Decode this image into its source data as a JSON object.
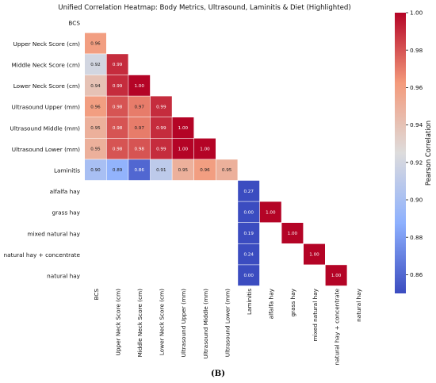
{
  "chart_data": {
    "type": "heatmap",
    "title": "Unified Correlation Heatmap: Body Metrics, Ultrasound, Laminitis & Diet (Highlighted)",
    "labels": [
      "BCS",
      "Upper Neck Score (cm)",
      "Middle Neck Score (cm)",
      "Lower Neck Score (cm)",
      "Ultrasound Upper (mm)",
      "Ultrasound Middle (mm)",
      "Ultrasound Lower (mm)",
      "Laminitis",
      "alfalfa hay",
      "grass hay",
      "mixed natural hay",
      "natural hay + concentrate",
      "natural hay"
    ],
    "cells": [
      {
        "row": 1,
        "col": 0,
        "value": 0.96
      },
      {
        "row": 2,
        "col": 0,
        "value": 0.92
      },
      {
        "row": 2,
        "col": 1,
        "value": 0.99
      },
      {
        "row": 3,
        "col": 0,
        "value": 0.94
      },
      {
        "row": 3,
        "col": 1,
        "value": 0.99
      },
      {
        "row": 3,
        "col": 2,
        "value": 1.0
      },
      {
        "row": 4,
        "col": 0,
        "value": 0.96
      },
      {
        "row": 4,
        "col": 1,
        "value": 0.98
      },
      {
        "row": 4,
        "col": 2,
        "value": 0.97
      },
      {
        "row": 4,
        "col": 3,
        "value": 0.99
      },
      {
        "row": 5,
        "col": 0,
        "value": 0.95
      },
      {
        "row": 5,
        "col": 1,
        "value": 0.98
      },
      {
        "row": 5,
        "col": 2,
        "value": 0.97
      },
      {
        "row": 5,
        "col": 3,
        "value": 0.99
      },
      {
        "row": 5,
        "col": 4,
        "value": 1.0
      },
      {
        "row": 6,
        "col": 0,
        "value": 0.95
      },
      {
        "row": 6,
        "col": 1,
        "value": 0.98
      },
      {
        "row": 6,
        "col": 2,
        "value": 0.98
      },
      {
        "row": 6,
        "col": 3,
        "value": 0.99
      },
      {
        "row": 6,
        "col": 4,
        "value": 1.0
      },
      {
        "row": 6,
        "col": 5,
        "value": 1.0
      },
      {
        "row": 7,
        "col": 0,
        "value": 0.9
      },
      {
        "row": 7,
        "col": 1,
        "value": 0.89
      },
      {
        "row": 7,
        "col": 2,
        "value": 0.86
      },
      {
        "row": 7,
        "col": 3,
        "value": 0.91
      },
      {
        "row": 7,
        "col": 4,
        "value": 0.95
      },
      {
        "row": 7,
        "col": 5,
        "value": 0.96
      },
      {
        "row": 7,
        "col": 6,
        "value": 0.95
      },
      {
        "row": 8,
        "col": 7,
        "value": 0.27
      },
      {
        "row": 9,
        "col": 7,
        "value": 0.0
      },
      {
        "row": 9,
        "col": 8,
        "value": 1.0
      },
      {
        "row": 10,
        "col": 7,
        "value": 0.19
      },
      {
        "row": 10,
        "col": 9,
        "value": 1.0
      },
      {
        "row": 11,
        "col": 7,
        "value": 0.24
      },
      {
        "row": 11,
        "col": 10,
        "value": 1.0
      },
      {
        "row": 12,
        "col": 7,
        "value": 0.0
      },
      {
        "row": 12,
        "col": 11,
        "value": 1.0
      }
    ],
    "colorbar": {
      "label": "Pearson Correlation",
      "vmin": 0.85,
      "vmax": 1.0,
      "ticks": [
        "0.86",
        "0.88",
        "0.90",
        "0.92",
        "0.94",
        "0.96",
        "0.98",
        "1.00"
      ],
      "colormap": "coolwarm"
    },
    "mask": "upper-triangle-and-diagonal",
    "grid": false,
    "legend_position": "right"
  },
  "caption": "(B)"
}
